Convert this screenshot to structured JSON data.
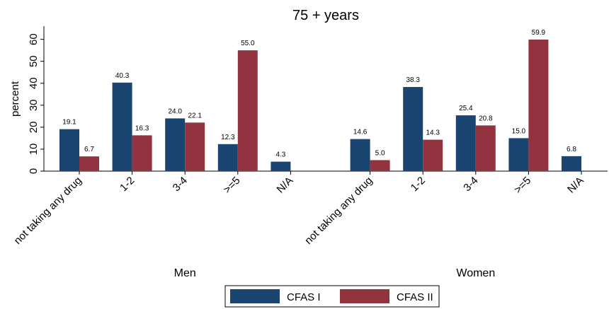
{
  "chart_data": {
    "type": "bar",
    "title": "75 + years",
    "y_label": "percent",
    "groups": [
      "Men",
      "Women"
    ],
    "categories": [
      "not taking any drug",
      "1-2",
      "3-4",
      ">=5",
      "N/A",
      "not taking any drug",
      "1-2",
      "3-4",
      ">=5",
      "N/A"
    ],
    "series": [
      {
        "name": "CFAS I",
        "color": "#1a4571",
        "values": [
          19.1,
          40.3,
          24.0,
          12.3,
          4.3,
          14.6,
          38.3,
          25.4,
          15.0,
          6.8
        ],
        "value_labels": [
          "19.1",
          "40.3",
          "24.0",
          "12.3",
          "4.3",
          "14.6",
          "38.3",
          "25.4",
          "15.0",
          "6.8"
        ]
      },
      {
        "name": "CFAS II",
        "color": "#943340",
        "values": [
          6.7,
          16.3,
          22.1,
          55.0,
          null,
          5.0,
          14.3,
          20.8,
          59.9,
          null
        ],
        "value_labels": [
          "6.7",
          "16.3",
          "22.1",
          "55.0",
          null,
          "5.0",
          "14.3",
          "20.8",
          "59.9",
          null
        ]
      }
    ],
    "ylim": [
      0,
      66
    ],
    "yticks": [
      0,
      10,
      20,
      30,
      40,
      50,
      60
    ],
    "legend": "bottom"
  }
}
